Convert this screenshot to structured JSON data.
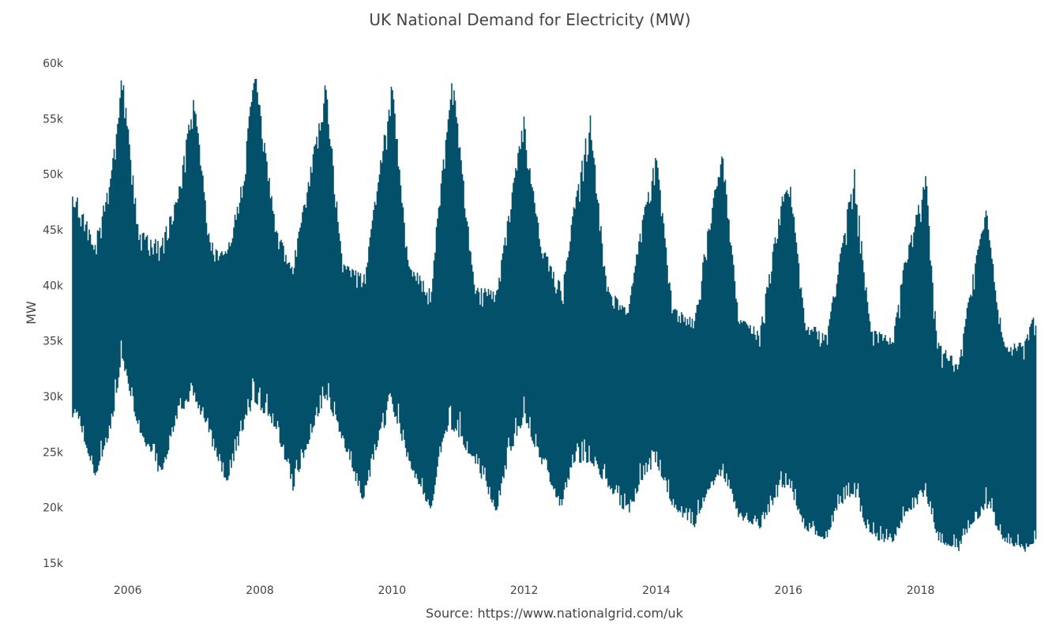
{
  "chart_data": {
    "type": "line",
    "title": "UK National Demand for Electricity (MW)",
    "xlabel": "Source: https://www.nationalgrid.com/uk",
    "ylabel": "MW",
    "xlim": [
      "2005-03",
      "2019-10"
    ],
    "ylim": [
      15000,
      60000
    ],
    "x_ticks": [
      "2006",
      "2008",
      "2010",
      "2012",
      "2014",
      "2016",
      "2018"
    ],
    "y_ticks": [
      {
        "value": 15000,
        "label": "15k"
      },
      {
        "value": 20000,
        "label": "20k"
      },
      {
        "value": 25000,
        "label": "25k"
      },
      {
        "value": 30000,
        "label": "30k"
      },
      {
        "value": 35000,
        "label": "35k"
      },
      {
        "value": 40000,
        "label": "40k"
      },
      {
        "value": 45000,
        "label": "45k"
      },
      {
        "value": 50000,
        "label": "50k"
      },
      {
        "value": 55000,
        "label": "55k"
      },
      {
        "value": 60000,
        "label": "60k"
      }
    ],
    "grid": false,
    "legend": "none",
    "color": "#03506a",
    "envelope": [
      [
        "2005-04",
        48000,
        28000
      ],
      [
        "2005-07",
        44000,
        22500
      ],
      [
        "2005-10",
        50000,
        27000
      ],
      [
        "2005-12",
        59500,
        33000
      ],
      [
        "2006-03",
        45000,
        27000
      ],
      [
        "2006-07",
        44000,
        22500
      ],
      [
        "2006-10",
        48000,
        28000
      ],
      [
        "2007-01",
        57300,
        30000
      ],
      [
        "2007-04",
        44000,
        26000
      ],
      [
        "2007-07",
        43000,
        22000
      ],
      [
        "2007-10",
        50000,
        27000
      ],
      [
        "2007-12",
        60000,
        29500
      ],
      [
        "2008-04",
        45000,
        27000
      ],
      [
        "2008-07",
        42000,
        21500
      ],
      [
        "2008-10",
        50000,
        26000
      ],
      [
        "2009-01",
        58500,
        30000
      ],
      [
        "2009-04",
        42000,
        26000
      ],
      [
        "2009-08",
        41000,
        20000
      ],
      [
        "2009-10",
        48000,
        25000
      ],
      [
        "2010-01",
        58500,
        29000
      ],
      [
        "2010-04",
        42000,
        24000
      ],
      [
        "2010-08",
        40000,
        19500
      ],
      [
        "2010-10",
        50000,
        25000
      ],
      [
        "2010-12",
        59000,
        27000
      ],
      [
        "2011-04",
        40000,
        24000
      ],
      [
        "2011-08",
        39500,
        19500
      ],
      [
        "2011-10",
        46000,
        24000
      ],
      [
        "2012-01",
        55500,
        28000
      ],
      [
        "2012-04",
        44000,
        24000
      ],
      [
        "2012-08",
        40000,
        19500
      ],
      [
        "2012-10",
        47000,
        24000
      ],
      [
        "2013-01",
        55700,
        24000
      ],
      [
        "2013-04",
        40000,
        22000
      ],
      [
        "2013-08",
        38000,
        19000
      ],
      [
        "2013-10",
        45000,
        22000
      ],
      [
        "2014-01",
        52000,
        24000
      ],
      [
        "2014-04",
        38000,
        20000
      ],
      [
        "2014-08",
        37000,
        18000
      ],
      [
        "2014-10",
        44000,
        21000
      ],
      [
        "2015-01",
        52500,
        23000
      ],
      [
        "2015-04",
        37000,
        19000
      ],
      [
        "2015-08",
        36500,
        18000
      ],
      [
        "2015-10",
        43000,
        20000
      ],
      [
        "2016-01",
        51000,
        22000
      ],
      [
        "2016-04",
        37000,
        18000
      ],
      [
        "2016-08",
        35500,
        17000
      ],
      [
        "2016-10",
        42000,
        20000
      ],
      [
        "2017-01",
        50500,
        21000
      ],
      [
        "2017-04",
        36000,
        17000
      ],
      [
        "2017-08",
        35500,
        16800
      ],
      [
        "2017-10",
        42000,
        19000
      ],
      [
        "2018-02",
        50000,
        21000
      ],
      [
        "2018-04",
        35000,
        17000
      ],
      [
        "2018-08",
        33000,
        16000
      ],
      [
        "2018-10",
        40000,
        18000
      ],
      [
        "2019-01",
        47000,
        20000
      ],
      [
        "2019-04",
        35000,
        17000
      ],
      [
        "2019-08",
        35000,
        16000
      ],
      [
        "2019-10",
        38000,
        17000
      ]
    ]
  }
}
